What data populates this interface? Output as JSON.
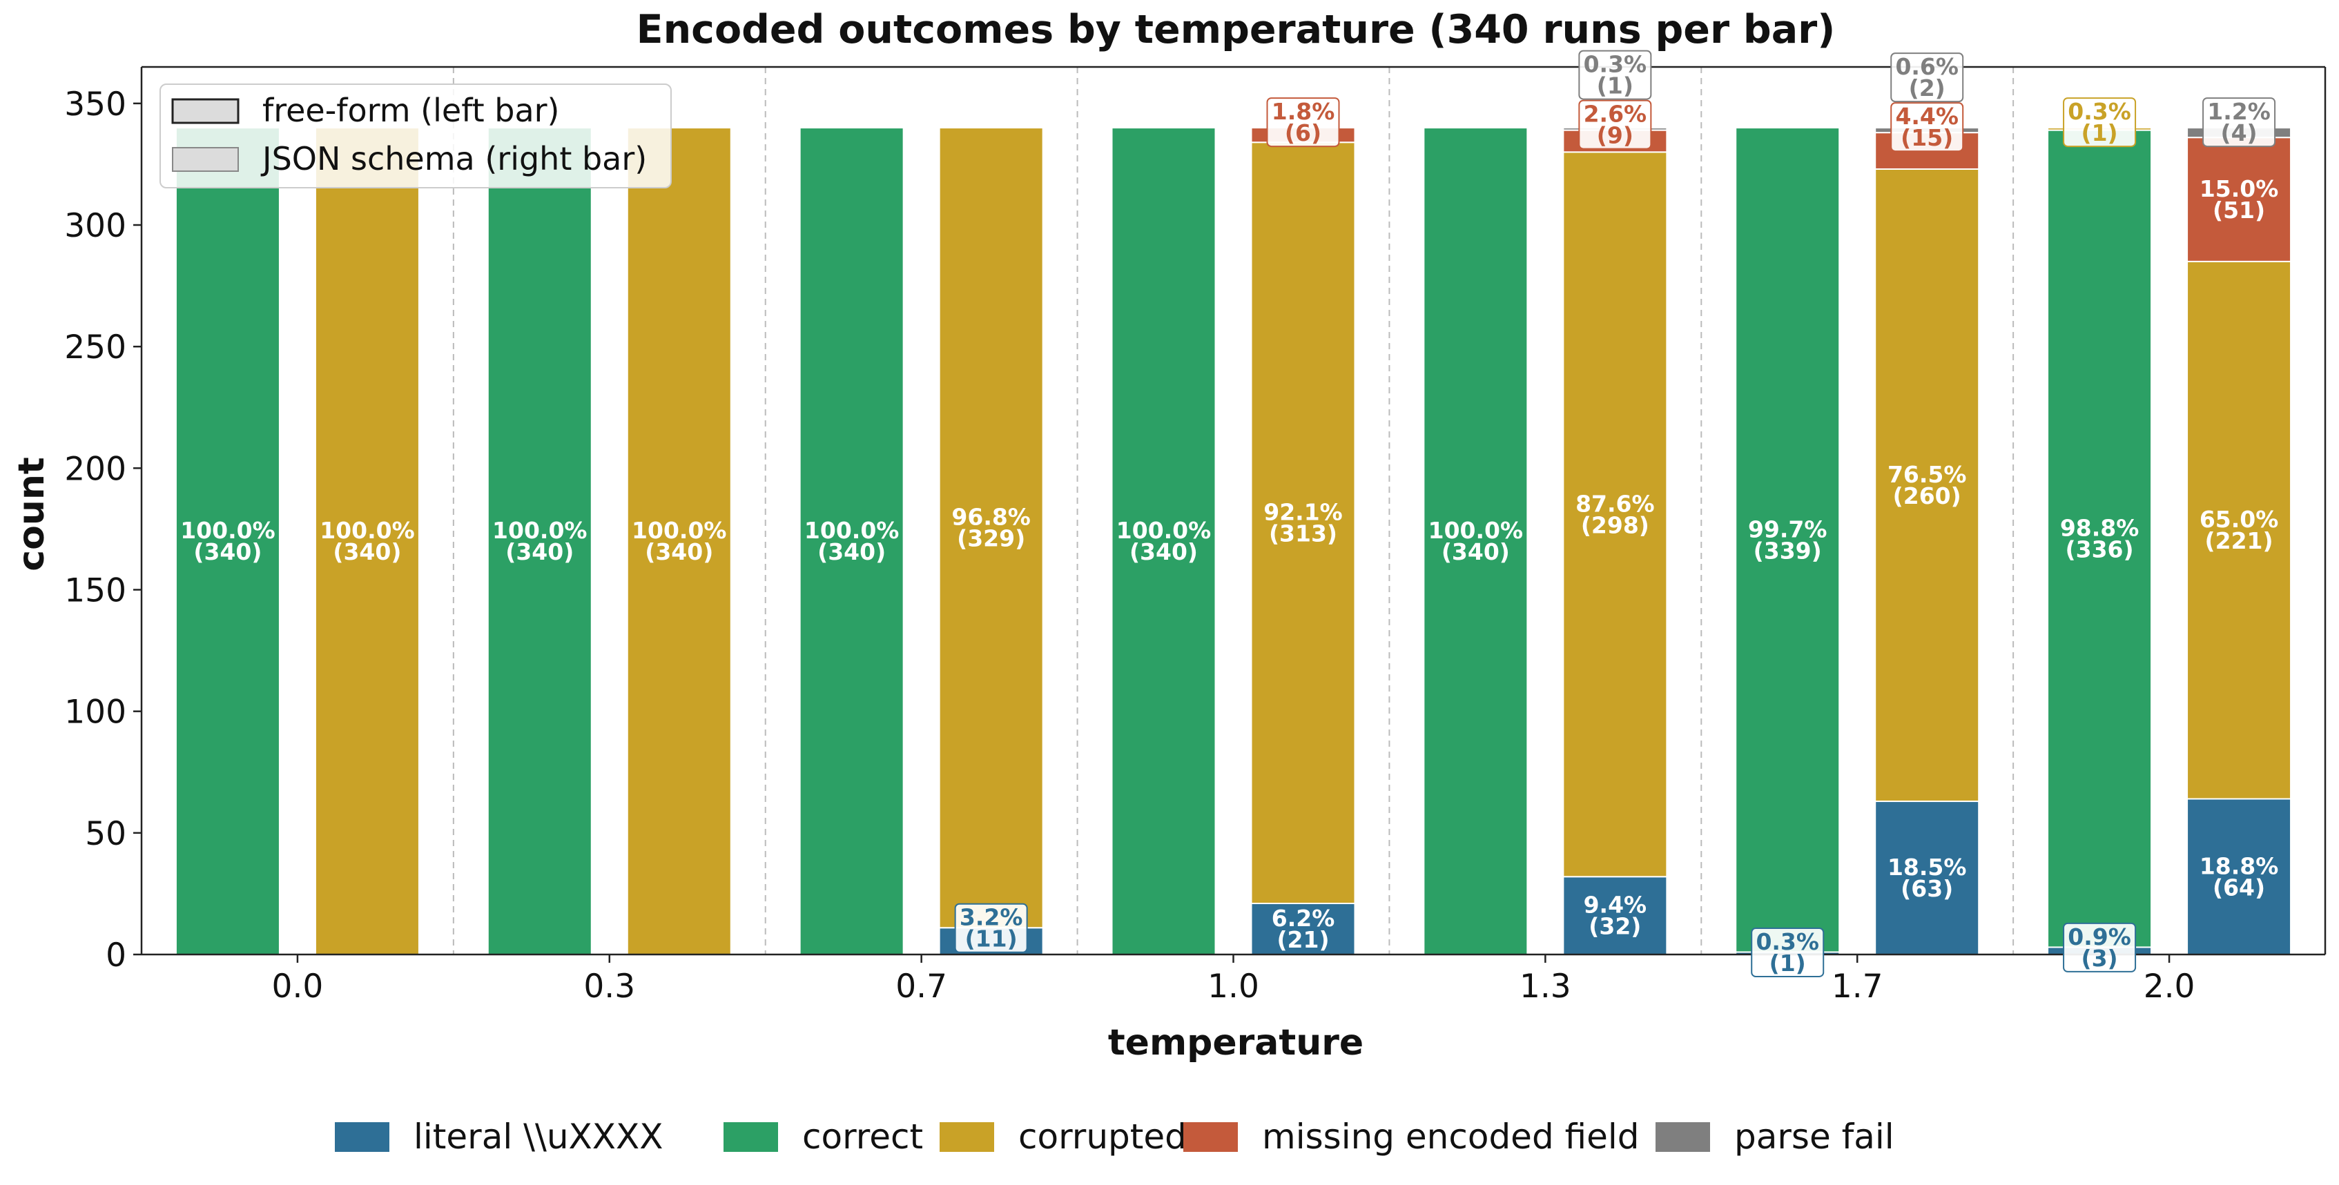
{
  "chart_data": {
    "type": "bar",
    "stacked": true,
    "title": "Encoded outcomes by temperature (340 runs per bar)",
    "xlabel": "temperature",
    "ylabel": "count",
    "ylim": [
      0,
      365
    ],
    "yticks": [
      0,
      50,
      100,
      150,
      200,
      250,
      300,
      350
    ],
    "grid": false,
    "categories": [
      "0.0",
      "0.3",
      "0.7",
      "1.0",
      "1.3",
      "1.7",
      "2.0"
    ],
    "bar_variants": [
      {
        "key": "free",
        "label": "free-form (left bar)"
      },
      {
        "key": "json",
        "label": "JSON schema (right bar)"
      }
    ],
    "series": [
      {
        "key": "literal",
        "name": "literal \\\\uXXXX",
        "color": "#2e6f96"
      },
      {
        "key": "correct",
        "name": "correct",
        "color": "#2ca065"
      },
      {
        "key": "corrupted",
        "name": "corrupted",
        "color": "#c9a227"
      },
      {
        "key": "missing",
        "name": "missing encoded field",
        "color": "#c45a3b"
      },
      {
        "key": "parse",
        "name": "parse fail",
        "color": "#7f7f7f"
      }
    ],
    "bars": [
      {
        "category": "0.0",
        "variant": "free",
        "values": {
          "literal": 0,
          "correct": 340,
          "corrupted": 0,
          "missing": 0,
          "parse": 0
        }
      },
      {
        "category": "0.0",
        "variant": "json",
        "values": {
          "literal": 0,
          "correct": 0,
          "corrupted": 340,
          "missing": 0,
          "parse": 0
        }
      },
      {
        "category": "0.3",
        "variant": "free",
        "values": {
          "literal": 0,
          "correct": 340,
          "corrupted": 0,
          "missing": 0,
          "parse": 0
        }
      },
      {
        "category": "0.3",
        "variant": "json",
        "values": {
          "literal": 0,
          "correct": 0,
          "corrupted": 340,
          "missing": 0,
          "parse": 0
        }
      },
      {
        "category": "0.7",
        "variant": "free",
        "values": {
          "literal": 0,
          "correct": 340,
          "corrupted": 0,
          "missing": 0,
          "parse": 0
        }
      },
      {
        "category": "0.7",
        "variant": "json",
        "values": {
          "literal": 11,
          "correct": 0,
          "corrupted": 329,
          "missing": 0,
          "parse": 0
        }
      },
      {
        "category": "1.0",
        "variant": "free",
        "values": {
          "literal": 0,
          "correct": 340,
          "corrupted": 0,
          "missing": 0,
          "parse": 0
        }
      },
      {
        "category": "1.0",
        "variant": "json",
        "values": {
          "literal": 21,
          "correct": 0,
          "corrupted": 313,
          "missing": 6,
          "parse": 0
        }
      },
      {
        "category": "1.3",
        "variant": "free",
        "values": {
          "literal": 0,
          "correct": 340,
          "corrupted": 0,
          "missing": 0,
          "parse": 0
        }
      },
      {
        "category": "1.3",
        "variant": "json",
        "values": {
          "literal": 32,
          "correct": 0,
          "corrupted": 298,
          "missing": 9,
          "parse": 1
        }
      },
      {
        "category": "1.7",
        "variant": "free",
        "values": {
          "literal": 1,
          "correct": 339,
          "corrupted": 0,
          "missing": 0,
          "parse": 0
        }
      },
      {
        "category": "1.7",
        "variant": "json",
        "values": {
          "literal": 63,
          "correct": 0,
          "corrupted": 260,
          "missing": 15,
          "parse": 2
        }
      },
      {
        "category": "2.0",
        "variant": "free",
        "values": {
          "literal": 3,
          "correct": 336,
          "corrupted": 1,
          "missing": 0,
          "parse": 0
        }
      },
      {
        "category": "2.0",
        "variant": "json",
        "values": {
          "literal": 64,
          "correct": 0,
          "corrupted": 221,
          "missing": 51,
          "parse": 4
        }
      }
    ],
    "segment_labels": [
      {
        "bar": 0,
        "series": "correct",
        "pct": "100.0%",
        "count": "(340)",
        "style": "inside"
      },
      {
        "bar": 1,
        "series": "corrupted",
        "pct": "100.0%",
        "count": "(340)",
        "style": "inside"
      },
      {
        "bar": 2,
        "series": "correct",
        "pct": "100.0%",
        "count": "(340)",
        "style": "inside"
      },
      {
        "bar": 3,
        "series": "corrupted",
        "pct": "100.0%",
        "count": "(340)",
        "style": "inside"
      },
      {
        "bar": 4,
        "series": "correct",
        "pct": "100.0%",
        "count": "(340)",
        "style": "inside"
      },
      {
        "bar": 5,
        "series": "corrupted",
        "pct": "96.8%",
        "count": "(329)",
        "style": "inside"
      },
      {
        "bar": 5,
        "series": "literal",
        "pct": "3.2%",
        "count": "(11)",
        "style": "boxed"
      },
      {
        "bar": 6,
        "series": "correct",
        "pct": "100.0%",
        "count": "(340)",
        "style": "inside"
      },
      {
        "bar": 7,
        "series": "corrupted",
        "pct": "92.1%",
        "count": "(313)",
        "style": "inside"
      },
      {
        "bar": 7,
        "series": "literal",
        "pct": "6.2%",
        "count": "(21)",
        "style": "inside"
      },
      {
        "bar": 7,
        "series": "missing",
        "pct": "1.8%",
        "count": "(6)",
        "style": "boxed"
      },
      {
        "bar": 8,
        "series": "correct",
        "pct": "100.0%",
        "count": "(340)",
        "style": "inside"
      },
      {
        "bar": 9,
        "series": "corrupted",
        "pct": "87.6%",
        "count": "(298)",
        "style": "inside"
      },
      {
        "bar": 9,
        "series": "literal",
        "pct": "9.4%",
        "count": "(32)",
        "style": "inside"
      },
      {
        "bar": 9,
        "series": "missing",
        "pct": "2.6%",
        "count": "(9)",
        "style": "boxed"
      },
      {
        "bar": 9,
        "series": "parse",
        "pct": "0.3%",
        "count": "(1)",
        "style": "boxed"
      },
      {
        "bar": 10,
        "series": "correct",
        "pct": "99.7%",
        "count": "(339)",
        "style": "inside"
      },
      {
        "bar": 10,
        "series": "literal",
        "pct": "0.3%",
        "count": "(1)",
        "style": "boxed"
      },
      {
        "bar": 11,
        "series": "corrupted",
        "pct": "76.5%",
        "count": "(260)",
        "style": "inside"
      },
      {
        "bar": 11,
        "series": "literal",
        "pct": "18.5%",
        "count": "(63)",
        "style": "inside"
      },
      {
        "bar": 11,
        "series": "missing",
        "pct": "4.4%",
        "count": "(15)",
        "style": "boxed"
      },
      {
        "bar": 11,
        "series": "parse",
        "pct": "0.6%",
        "count": "(2)",
        "style": "boxed"
      },
      {
        "bar": 12,
        "series": "correct",
        "pct": "98.8%",
        "count": "(336)",
        "style": "inside"
      },
      {
        "bar": 12,
        "series": "literal",
        "pct": "0.9%",
        "count": "(3)",
        "style": "boxed"
      },
      {
        "bar": 12,
        "series": "corrupted",
        "pct": "0.3%",
        "count": "(1)",
        "style": "boxed"
      },
      {
        "bar": 13,
        "series": "corrupted",
        "pct": "65.0%",
        "count": "(221)",
        "style": "inside"
      },
      {
        "bar": 13,
        "series": "literal",
        "pct": "18.8%",
        "count": "(64)",
        "style": "inside"
      },
      {
        "bar": 13,
        "series": "missing",
        "pct": "15.0%",
        "count": "(51)",
        "style": "inside"
      },
      {
        "bar": 13,
        "series": "parse",
        "pct": "1.2%",
        "count": "(4)",
        "style": "boxed"
      }
    ],
    "legend_inset_position": "top-left",
    "legend_bottom_position": "bottom-center"
  }
}
